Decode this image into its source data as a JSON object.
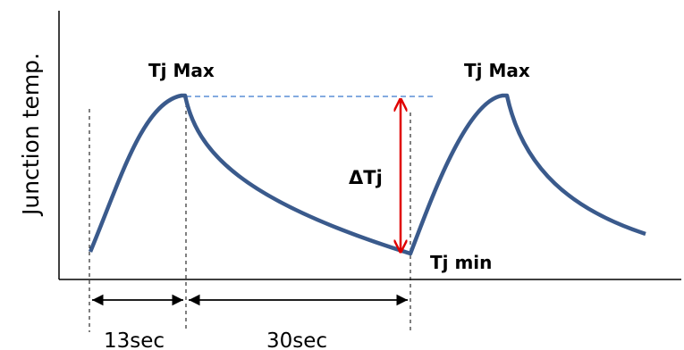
{
  "labels": {
    "y_axis": "Junction temp.",
    "tj_max_1": "Tj Max",
    "tj_max_2": "Tj Max",
    "tj_min": "Tj min",
    "delta_tj": "ΔTj",
    "duration_heat": "13sec",
    "duration_cool": "30sec"
  },
  "colors": {
    "curve": "#3a5a8c",
    "max_ref_line": "#5b8fd6",
    "delta_arrow": "#e00000",
    "axes": "#000000"
  }
}
